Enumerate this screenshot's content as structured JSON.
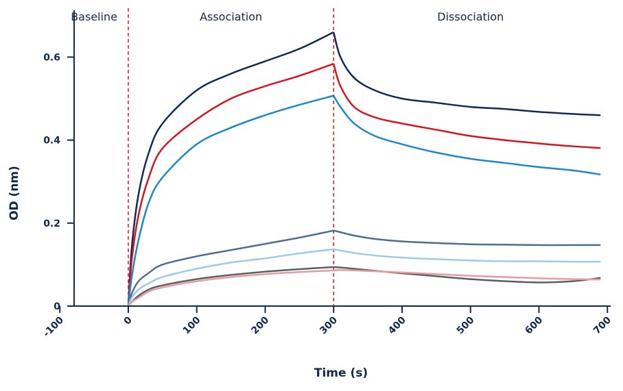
{
  "chart_data": {
    "type": "line",
    "title": "",
    "xlabel": "Time (s)",
    "ylabel": "OD (nm)",
    "xlim": [
      -100,
      700
    ],
    "ylim": [
      0,
      0.66
    ],
    "xticks": [
      "-100",
      "0",
      "100",
      "200",
      "300",
      "400",
      "500",
      "600",
      "700"
    ],
    "yticks": [
      "0",
      "0.2",
      "0.4",
      "0.6"
    ],
    "grid": false,
    "phases": [
      {
        "label": "Baseline",
        "start": -100,
        "end": 0
      },
      {
        "label": "Association",
        "start": 0,
        "end": 300
      },
      {
        "label": "Dissociation",
        "start": 300,
        "end": 700
      }
    ],
    "phase_boundaries": [
      0,
      300
    ],
    "phase_boundary_color": "#d7141d",
    "x": [
      0,
      5,
      15,
      30,
      50,
      100,
      150,
      200,
      250,
      300,
      310,
      330,
      360,
      400,
      450,
      500,
      550,
      600,
      650,
      690
    ],
    "series": [
      {
        "color": "#0f2a55",
        "values": [
          0,
          0.14,
          0.27,
          0.37,
          0.44,
          0.52,
          0.56,
          0.59,
          0.62,
          0.66,
          0.6,
          0.55,
          0.52,
          0.5,
          0.49,
          0.48,
          0.475,
          0.468,
          0.463,
          0.46
        ]
      },
      {
        "color": "#d7141d",
        "values": [
          0,
          0.11,
          0.22,
          0.31,
          0.38,
          0.45,
          0.5,
          0.53,
          0.555,
          0.584,
          0.53,
          0.48,
          0.455,
          0.44,
          0.425,
          0.41,
          0.4,
          0.392,
          0.385,
          0.381
        ]
      },
      {
        "color": "#1a87d0",
        "values": [
          0,
          0.07,
          0.16,
          0.25,
          0.31,
          0.39,
          0.43,
          0.46,
          0.485,
          0.507,
          0.48,
          0.44,
          0.41,
          0.39,
          0.37,
          0.355,
          0.345,
          0.335,
          0.327,
          0.317
        ]
      },
      {
        "color": "#4e6d8f",
        "values": [
          0,
          0.03,
          0.06,
          0.08,
          0.1,
          0.12,
          0.135,
          0.15,
          0.165,
          0.182,
          0.178,
          0.17,
          0.162,
          0.156,
          0.152,
          0.149,
          0.148,
          0.147,
          0.147,
          0.147
        ]
      },
      {
        "color": "#9ccbe8",
        "values": [
          0,
          0.02,
          0.04,
          0.055,
          0.07,
          0.09,
          0.105,
          0.115,
          0.127,
          0.137,
          0.134,
          0.128,
          0.122,
          0.117,
          0.113,
          0.11,
          0.108,
          0.108,
          0.107,
          0.107
        ]
      },
      {
        "color": "#5b5f63",
        "values": [
          0,
          0.01,
          0.025,
          0.04,
          0.05,
          0.065,
          0.075,
          0.083,
          0.089,
          0.094,
          0.093,
          0.09,
          0.085,
          0.079,
          0.072,
          0.065,
          0.06,
          0.057,
          0.06,
          0.068
        ]
      },
      {
        "color": "#e89a9e",
        "values": [
          0,
          0.01,
          0.02,
          0.035,
          0.045,
          0.06,
          0.07,
          0.077,
          0.082,
          0.086,
          0.087,
          0.086,
          0.084,
          0.081,
          0.077,
          0.073,
          0.07,
          0.067,
          0.065,
          0.064
        ]
      }
    ]
  }
}
